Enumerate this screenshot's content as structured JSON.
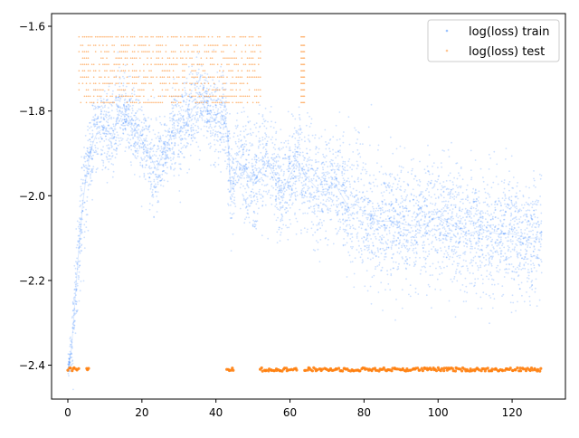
{
  "chart_data": {
    "type": "scatter",
    "title": "",
    "xlabel": "",
    "ylabel": "",
    "xlim": [
      -4.4,
      134.4
    ],
    "ylim": [
      -2.48,
      -1.57
    ],
    "xticks": [
      0,
      20,
      40,
      60,
      80,
      100,
      120
    ],
    "yticks": [
      -2.4,
      -2.2,
      -2.0,
      -1.8,
      -1.6
    ],
    "xtick_labels": [
      "0",
      "20",
      "40",
      "60",
      "80",
      "100",
      "120"
    ],
    "ytick_labels": [
      "−2.4",
      "−2.2",
      "−2.0",
      "−1.8",
      "−1.6"
    ],
    "grid": false,
    "legend_position": "top-right",
    "series": [
      {
        "name": "log(loss) train",
        "color": "#1f77ff",
        "marker": "point",
        "x": [
          0,
          1,
          2,
          3,
          4,
          5,
          6,
          7,
          8,
          10,
          12,
          14,
          16,
          18,
          20,
          22,
          24,
          26,
          28,
          30,
          32,
          34,
          36,
          38,
          40,
          42,
          43,
          44,
          46,
          48,
          50,
          52,
          54,
          56,
          58,
          60,
          62,
          64,
          66,
          68,
          70,
          72,
          74,
          76,
          78,
          80,
          84,
          88,
          92,
          96,
          100,
          104,
          108,
          112,
          116,
          120,
          124,
          128
        ],
        "y": [
          -2.41,
          -2.36,
          -2.24,
          -2.12,
          -2.02,
          -1.95,
          -1.9,
          -1.87,
          -1.85,
          -1.84,
          -1.86,
          -1.8,
          -1.81,
          -1.84,
          -1.87,
          -1.9,
          -1.94,
          -1.89,
          -1.86,
          -1.85,
          -1.83,
          -1.79,
          -1.78,
          -1.8,
          -1.83,
          -1.82,
          -1.84,
          -1.99,
          -1.92,
          -1.94,
          -1.97,
          -1.94,
          -1.92,
          -1.96,
          -1.99,
          -1.95,
          -1.92,
          -1.95,
          -1.97,
          -1.99,
          -1.99,
          -1.97,
          -2.0,
          -2.03,
          -2.02,
          -2.04,
          -2.06,
          -2.06,
          -2.07,
          -2.07,
          -2.05,
          -2.07,
          -2.09,
          -2.08,
          -2.09,
          -2.09,
          -2.1,
          -2.1
        ],
        "spread": [
          0.01,
          0.03,
          0.06,
          0.06,
          0.06,
          0.06,
          0.05,
          0.05,
          0.05,
          0.05,
          0.05,
          0.05,
          0.05,
          0.05,
          0.05,
          0.05,
          0.05,
          0.05,
          0.05,
          0.05,
          0.05,
          0.05,
          0.05,
          0.05,
          0.05,
          0.05,
          0.05,
          0.06,
          0.06,
          0.06,
          0.06,
          0.06,
          0.06,
          0.06,
          0.06,
          0.06,
          0.06,
          0.06,
          0.06,
          0.06,
          0.06,
          0.06,
          0.06,
          0.06,
          0.07,
          0.07,
          0.07,
          0.07,
          0.07,
          0.07,
          0.07,
          0.07,
          0.07,
          0.07,
          0.07,
          0.07,
          0.07,
          0.07
        ]
      },
      {
        "name": "log(loss) test",
        "color": "#ff7f0e",
        "marker": "point",
        "baseline": -2.41,
        "baseline_segments": [
          [
            0,
            3
          ],
          [
            5,
            6
          ],
          [
            43,
            45
          ],
          [
            52,
            62
          ],
          [
            64,
            128
          ]
        ],
        "upper_levels": [
          -1.625,
          -1.645,
          -1.66,
          -1.675,
          -1.69,
          -1.705,
          -1.72,
          -1.735,
          -1.75,
          -1.765,
          -1.78
        ],
        "upper_x_range": [
          3,
          52
        ],
        "upper_x_extra": [
          63,
          64
        ]
      }
    ]
  },
  "legend": {
    "train_label": "log(loss) train",
    "test_label": "log(loss) test"
  }
}
